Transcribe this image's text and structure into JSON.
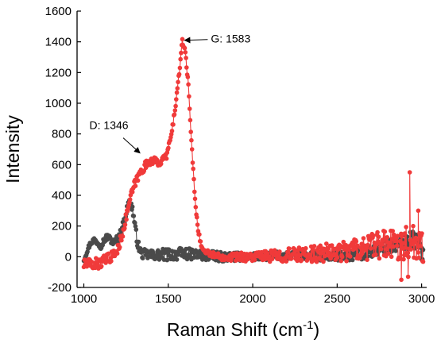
{
  "chart_data": {
    "type": "scatter",
    "title": "",
    "xlabel_main": "Raman Shift (cm",
    "xlabel_sup": "-1",
    "xlabel_close": ")",
    "ylabel": "Intensity",
    "xlim": [
      960,
      3030
    ],
    "ylim": [
      -200,
      1600
    ],
    "xticks": [
      1000,
      1500,
      2000,
      2500,
      3000
    ],
    "yticks": [
      -200,
      0,
      200,
      400,
      600,
      800,
      1000,
      1200,
      1400,
      1600
    ],
    "grid": false,
    "legend": "none",
    "colors": {
      "series_gray": "#4a4a4a",
      "series_red": "#f03a3a",
      "axis": "#000000"
    },
    "series": [
      {
        "color_key": "series_gray",
        "profile": [
          [
            1000,
            -20
          ],
          [
            1020,
            40
          ],
          [
            1040,
            90
          ],
          [
            1060,
            110
          ],
          [
            1080,
            95
          ],
          [
            1100,
            70
          ],
          [
            1120,
            110
          ],
          [
            1140,
            130
          ],
          [
            1160,
            110
          ],
          [
            1180,
            90
          ],
          [
            1200,
            120
          ],
          [
            1220,
            160
          ],
          [
            1240,
            240
          ],
          [
            1260,
            330
          ],
          [
            1275,
            360
          ],
          [
            1290,
            300
          ],
          [
            1305,
            180
          ],
          [
            1320,
            80
          ],
          [
            1340,
            20
          ],
          [
            1400,
            10
          ],
          [
            1500,
            15
          ],
          [
            1600,
            20
          ],
          [
            1650,
            15
          ],
          [
            1700,
            10
          ],
          [
            1800,
            0
          ],
          [
            2000,
            0
          ],
          [
            2200,
            10
          ],
          [
            2400,
            0
          ],
          [
            2600,
            10
          ],
          [
            2800,
            60
          ],
          [
            2900,
            90
          ],
          [
            2950,
            120
          ],
          [
            3000,
            40
          ],
          [
            3010,
            10
          ]
        ],
        "noise": [
          15,
          40,
          25,
          30,
          60
        ]
      },
      {
        "color_key": "series_red",
        "profile": [
          [
            1000,
            -50
          ],
          [
            1050,
            -50
          ],
          [
            1100,
            -40
          ],
          [
            1150,
            -10
          ],
          [
            1200,
            40
          ],
          [
            1240,
            200
          ],
          [
            1270,
            360
          ],
          [
            1300,
            470
          ],
          [
            1330,
            540
          ],
          [
            1360,
            590
          ],
          [
            1400,
            630
          ],
          [
            1450,
            610
          ],
          [
            1490,
            660
          ],
          [
            1520,
            800
          ],
          [
            1550,
            1050
          ],
          [
            1570,
            1250
          ],
          [
            1583,
            1400
          ],
          [
            1600,
            1350
          ],
          [
            1620,
            1100
          ],
          [
            1640,
            700
          ],
          [
            1660,
            350
          ],
          [
            1680,
            150
          ],
          [
            1700,
            50
          ],
          [
            1750,
            20
          ],
          [
            1800,
            0
          ],
          [
            2000,
            0
          ],
          [
            2200,
            10
          ],
          [
            2400,
            20
          ],
          [
            2600,
            50
          ],
          [
            2800,
            80
          ],
          [
            2930,
            90
          ],
          [
            3010,
            80
          ]
        ],
        "noise": [
          40,
          15,
          50,
          120
        ],
        "spikes": [
          [
            2930,
            550
          ],
          [
            2950,
            200
          ],
          [
            2880,
            -150
          ],
          [
            2920,
            -130
          ],
          [
            2980,
            300
          ]
        ]
      }
    ],
    "annotations": [
      {
        "label": "D: 1346",
        "x": 1346,
        "y": 650
      },
      {
        "label": "G: 1583",
        "x": 1583,
        "y": 1410
      }
    ]
  }
}
